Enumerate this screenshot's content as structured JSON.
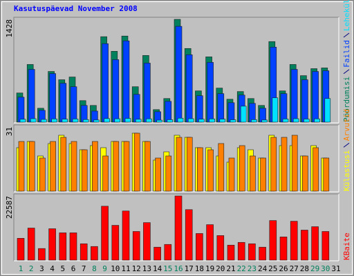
{
  "title": "Kasutuspäevad November 2008",
  "chart_data": [
    {
      "type": "bar",
      "ylim": [
        0,
        1428
      ],
      "yticks": [
        1428
      ],
      "series": [
        {
          "name": "Pöördumisi",
          "color": "#00805c",
          "values": [
            405,
            801,
            193,
            704,
            589,
            627,
            299,
            232,
            1187,
            984,
            1196,
            492,
            926,
            174,
            328,
            1428,
            1023,
            434,
            907,
            473,
            318,
            425,
            328,
            232,
            1119,
            434,
            801,
            646,
            743,
            753,
            null
          ]
        },
        {
          "name": "Failid",
          "color": "#0040ff",
          "values": [
            347,
            733,
            164,
            675,
            540,
            492,
            232,
            154,
            1090,
            868,
            1129,
            386,
            820,
            145,
            289,
            1331,
            936,
            367,
            830,
            396,
            270,
            376,
            261,
            193,
            1042,
            396,
            733,
            589,
            704,
            714,
            null
          ]
        },
        {
          "name": "Lehekülgi",
          "color": "#00e0ff",
          "values": [
            40,
            48,
            38,
            45,
            42,
            44,
            36,
            30,
            50,
            47,
            52,
            40,
            46,
            28,
            34,
            55,
            48,
            41,
            45,
            42,
            33,
            222,
            35,
            30,
            338,
            44,
            48,
            43,
            46,
            328,
            null
          ]
        }
      ]
    },
    {
      "type": "bar",
      "ylim": [
        0,
        31
      ],
      "yticks": [
        31
      ],
      "series": [
        {
          "name": "Külastusi",
          "color": "#ffff00",
          "values": [
            21,
            24,
            17,
            23,
            27,
            23,
            20,
            22,
            21,
            24,
            24,
            28,
            24,
            15,
            19,
            27,
            26,
            21,
            21,
            17,
            14,
            21,
            20,
            16,
            27,
            22,
            22,
            17,
            22,
            16,
            null
          ]
        },
        {
          "name": "Arvutid",
          "color": "#ff8000",
          "values": [
            24,
            24,
            16,
            24,
            26,
            24,
            20,
            24,
            17,
            24,
            24,
            28,
            24,
            16,
            17,
            26,
            26,
            21,
            20,
            23,
            16,
            22,
            17,
            16,
            26,
            26,
            27,
            17,
            21,
            16,
            null
          ]
        }
      ]
    },
    {
      "type": "bar",
      "ylim": [
        0,
        22587
      ],
      "yticks": [
        22587
      ],
      "series": [
        {
          "name": "KBaite",
          "color": "#ff0000",
          "values": [
            7689,
            11294,
            4085,
            11053,
            9612,
            9612,
            5767,
            4806,
            18983,
            12255,
            17301,
            10092,
            13216,
            4565,
            5527,
            22587,
            17782,
            9371,
            12495,
            8650,
            5286,
            6248,
            5767,
            4565,
            13937,
            8170,
            13697,
            10573,
            11774,
            10092,
            null
          ]
        }
      ],
      "categories": [
        "1",
        "2",
        "3",
        "4",
        "5",
        "6",
        "7",
        "8",
        "9",
        "10",
        "11",
        "12",
        "13",
        "14",
        "15",
        "16",
        "17",
        "18",
        "19",
        "20",
        "21",
        "22",
        "23",
        "24",
        "25",
        "26",
        "27",
        "28",
        "29",
        "30",
        "31"
      ],
      "category_colors": [
        "#00805c",
        "#00805c",
        "#000000",
        "#000000",
        "#000000",
        "#000000",
        "#000000",
        "#00805c",
        "#00805c",
        "#000000",
        "#000000",
        "#000000",
        "#000000",
        "#000000",
        "#00805c",
        "#00805c",
        "#000000",
        "#000000",
        "#000000",
        "#000000",
        "#000000",
        "#00805c",
        "#00805c",
        "#000000",
        "#000000",
        "#000000",
        "#000000",
        "#000000",
        "#00805c",
        "#00805c",
        "#000000"
      ]
    }
  ]
}
